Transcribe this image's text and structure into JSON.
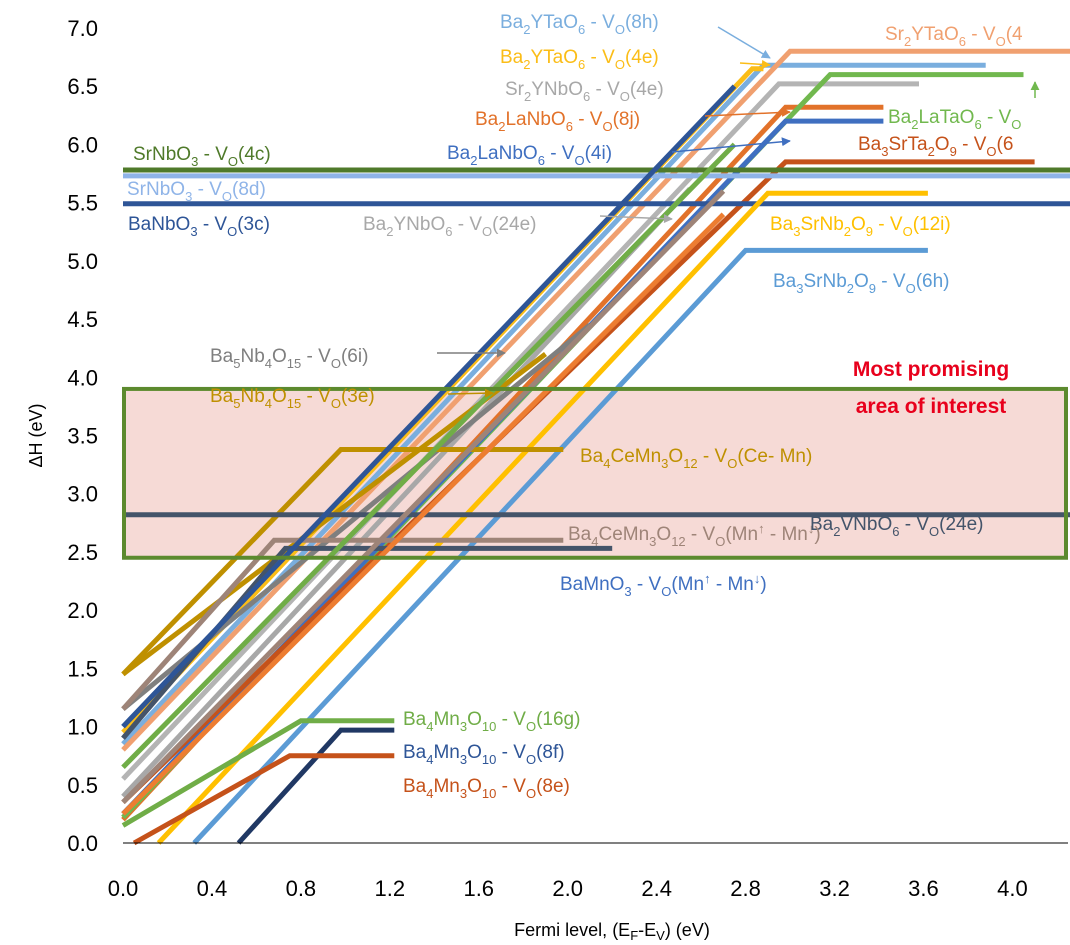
{
  "chart_data": {
    "type": "line",
    "xlabel": "Fermi level, (E_F-E_V) (eV)",
    "ylabel": "ΔH (eV)",
    "xlim": [
      0,
      4.25
    ],
    "ylim": [
      0,
      7
    ],
    "x_ticks": [
      "0.0",
      "0.4",
      "0.8",
      "1.2",
      "1.6",
      "2.0",
      "2.4",
      "2.8",
      "3.2",
      "3.6",
      "4.0"
    ],
    "y_ticks": [
      "0.0",
      "0.5",
      "1.0",
      "1.5",
      "2.0",
      "2.5",
      "3.0",
      "3.5",
      "4.0",
      "4.5",
      "5.0",
      "5.5",
      "6.0",
      "6.5",
      "7.0"
    ],
    "grid": false,
    "legend": "none",
    "region": {
      "label": [
        "Most promising",
        "area of interest"
      ],
      "y_range": [
        2.45,
        3.9
      ],
      "fill": "#f6dad6",
      "border": "#5c8a2e"
    },
    "series": [
      {
        "name": "Ba2YTaO6 - VO(8h)",
        "color": "#7aaede",
        "x": [
          0.0,
          2.88,
          3.88
        ],
        "y": [
          0.85,
          6.68,
          6.68
        ]
      },
      {
        "name": "Sr2YTaO6 - VO(4",
        "color": "#f0a070",
        "x": [
          0.0,
          3.0,
          4.3
        ],
        "y": [
          0.8,
          6.8,
          6.8
        ]
      },
      {
        "name": "Ba2YTaO6 - VO(4e)",
        "color": "#fbbd17",
        "x": [
          0.0,
          2.83,
          2.88
        ],
        "y": [
          0.95,
          6.65,
          6.65
        ]
      },
      {
        "name": "Sr2YNbO6 - VO(4e)",
        "color": "#b4b4b4",
        "x": [
          0.0,
          2.95,
          3.58
        ],
        "y": [
          0.55,
          6.52,
          6.52
        ]
      },
      {
        "name": "Ba2LaNbO6 - VO(8j)",
        "color": "#e2722a",
        "x": [
          0.0,
          2.98,
          3.42
        ],
        "y": [
          0.2,
          6.32,
          6.32
        ]
      },
      {
        "name": "Ba2LaTaO6 - VO",
        "color": "#71b84e",
        "x": [
          0.0,
          3.18,
          4.05
        ],
        "y": [
          0.22,
          6.6,
          6.6
        ]
      },
      {
        "name": "Ba2LaNbO6 - VO(4i)",
        "color": "#3f6fc0",
        "x": [
          0.0,
          2.98,
          3.42
        ],
        "y": [
          0.25,
          6.2,
          6.2
        ]
      },
      {
        "name": "Ba3SrTa2O9 - VO(6",
        "color": "#c5521a",
        "x": [
          0.0,
          2.98,
          4.1
        ],
        "y": [
          0.35,
          5.85,
          5.85
        ]
      },
      {
        "name": "SrNbO3 - VO(4c)",
        "color": "#4f7a2a",
        "x": [
          0.0,
          4.3
        ],
        "y": [
          5.78,
          5.78
        ]
      },
      {
        "name": "SrNbO3 - VO(8d)",
        "color": "#8fb4e8",
        "x": [
          0.0,
          4.3
        ],
        "y": [
          5.73,
          5.73
        ]
      },
      {
        "name": "BaNbO3 - VO(3c)",
        "color": "#2e5597",
        "x": [
          0.0,
          4.3
        ],
        "y": [
          5.49,
          5.49
        ]
      },
      {
        "name": "Ba2YNbO6 - VO(24e)",
        "color": "#a8a8a8",
        "x": [
          0.0,
          2.55
        ],
        "y": [
          0.4,
          5.62
        ]
      },
      {
        "name": "Ba3SrNb2O9 - VO(12i)",
        "color": "#ffc000",
        "x": [
          0.16,
          2.9,
          3.62
        ],
        "y": [
          0.0,
          5.58,
          5.58
        ]
      },
      {
        "name": "Ba3SrNb2O9 - VO(6h)",
        "color": "#5b9bd5",
        "x": [
          0.32,
          2.8,
          3.62
        ],
        "y": [
          0.0,
          5.09,
          5.09
        ]
      },
      {
        "name": "Ba5Nb4O15 - VO(6i)",
        "color": "#7f7f7f",
        "x": [
          0.0,
          2.1
        ],
        "y": [
          1.15,
          4.45
        ]
      },
      {
        "name": "Ba5Nb4O15 - VO(3e)",
        "color": "#bf9000",
        "x": [
          0.0,
          1.9
        ],
        "y": [
          1.45,
          4.2
        ]
      },
      {
        "name": "Ba4CeMn3O12 - VO(Ce- Mn)",
        "color": "#bf9000",
        "x": [
          0.0,
          0.98,
          1.98
        ],
        "y": [
          1.45,
          3.38,
          3.38
        ]
      },
      {
        "name": "Ba2VNbO6 - VO(24e)",
        "color": "#44546a",
        "x": [
          0.0,
          4.3
        ],
        "y": [
          2.82,
          2.82
        ]
      },
      {
        "name": "Ba4CeMn3O12 - VO(Mn↑ - Mn↓)",
        "color": "#9e8478",
        "x": [
          0.0,
          0.68,
          1.98
        ],
        "y": [
          1.15,
          2.6,
          2.6
        ]
      },
      {
        "name": "BaMnO3 - VO(Mn↑ - Mn↓)",
        "color": "#44546a",
        "x": [
          0.0,
          0.73,
          2.2
        ],
        "y": [
          0.9,
          2.53,
          2.53
        ]
      },
      {
        "name": "Ba4Mn3O10 - VO(16g)",
        "color": "#70ad47",
        "x": [
          0.0,
          0.8,
          1.22
        ],
        "y": [
          0.15,
          1.05,
          1.05
        ]
      },
      {
        "name": "Ba4Mn3O10 - VO(8f)",
        "color": "#203864",
        "x": [
          0.52,
          0.98,
          1.22
        ],
        "y": [
          0.0,
          0.97,
          0.97
        ]
      },
      {
        "name": "Ba4Mn3O10 - VO(8e)",
        "color": "#c5521a",
        "x": [
          0.05,
          0.75,
          1.22
        ],
        "y": [
          0.0,
          0.75,
          0.75
        ]
      },
      {
        "name": "",
        "color": "#2e5597",
        "x": [
          0.0,
          2.75
        ],
        "y": [
          1.0,
          6.5
        ]
      },
      {
        "name": "",
        "color": "#70ad47",
        "x": [
          0.0,
          2.75
        ],
        "y": [
          0.65,
          6.0
        ]
      },
      {
        "name": "",
        "color": "#ed7d31",
        "x": [
          0.0,
          2.7
        ],
        "y": [
          0.25,
          5.4
        ]
      },
      {
        "name": "",
        "color": "#9e8478",
        "x": [
          0.0,
          2.7
        ],
        "y": [
          0.35,
          5.6
        ]
      }
    ],
    "labels": [
      {
        "segs": [
          [
            "Ba",
            ""
          ],
          [
            "2",
            "sub"
          ],
          [
            "YTaO",
            ""
          ],
          [
            "6",
            "sub"
          ],
          [
            " - V",
            ""
          ],
          [
            "O",
            "sub"
          ],
          [
            "(8h)",
            ""
          ]
        ],
        "color": "#7aaede"
      },
      {
        "segs": [
          [
            "Sr",
            ""
          ],
          [
            "2",
            "sub"
          ],
          [
            "YTaO",
            ""
          ],
          [
            "6",
            "sub"
          ],
          [
            " - V",
            ""
          ],
          [
            "O",
            "sub"
          ],
          [
            "(4",
            ""
          ]
        ],
        "color": "#f0a070"
      },
      {
        "segs": [
          [
            "Ba",
            ""
          ],
          [
            "2",
            "sub"
          ],
          [
            "YTaO",
            ""
          ],
          [
            "6",
            "sub"
          ],
          [
            " - V",
            ""
          ],
          [
            "O",
            "sub"
          ],
          [
            "(4e)",
            ""
          ]
        ],
        "color": "#fbbd17"
      },
      {
        "segs": [
          [
            "Sr",
            ""
          ],
          [
            "2",
            "sub"
          ],
          [
            "YNbO",
            ""
          ],
          [
            "6",
            "sub"
          ],
          [
            " - V",
            ""
          ],
          [
            "O",
            "sub"
          ],
          [
            "(4e)",
            ""
          ]
        ],
        "color": "#a8a8a8"
      },
      {
        "segs": [
          [
            "Ba",
            ""
          ],
          [
            "2",
            "sub"
          ],
          [
            "LaNbO",
            ""
          ],
          [
            "6",
            "sub"
          ],
          [
            " - V",
            ""
          ],
          [
            "O",
            "sub"
          ],
          [
            "(8j)",
            ""
          ]
        ],
        "color": "#e2722a"
      },
      {
        "segs": [
          [
            "Ba",
            ""
          ],
          [
            "2",
            "sub"
          ],
          [
            "LaTaO",
            ""
          ],
          [
            "6",
            "sub"
          ],
          [
            " - V",
            ""
          ],
          [
            "O",
            "sub"
          ]
        ],
        "color": "#71b84e"
      },
      {
        "segs": [
          [
            "SrNbO",
            ""
          ],
          [
            "3",
            "sub"
          ],
          [
            " - V",
            ""
          ],
          [
            "O",
            "sub"
          ],
          [
            "(4c)",
            ""
          ]
        ],
        "color": "#4f7a2a"
      },
      {
        "segs": [
          [
            "Ba",
            ""
          ],
          [
            "2",
            "sub"
          ],
          [
            "LaNbO",
            ""
          ],
          [
            "6",
            "sub"
          ],
          [
            " - V",
            ""
          ],
          [
            "O",
            "sub"
          ],
          [
            "(4i)",
            ""
          ]
        ],
        "color": "#3f6fc0"
      },
      {
        "segs": [
          [
            "Ba",
            ""
          ],
          [
            "3",
            "sub"
          ],
          [
            "SrTa",
            ""
          ],
          [
            "2",
            "sub"
          ],
          [
            "O",
            ""
          ],
          [
            "9",
            "sub"
          ],
          [
            " - V",
            ""
          ],
          [
            "O",
            "sub"
          ],
          [
            "(6",
            ""
          ]
        ],
        "color": "#c5521a"
      },
      {
        "segs": [
          [
            "SrNbO",
            ""
          ],
          [
            "3",
            "sub"
          ],
          [
            " - V",
            ""
          ],
          [
            "O",
            "sub"
          ],
          [
            "(8d)",
            ""
          ]
        ],
        "color": "#8fb4e8"
      },
      {
        "segs": [
          [
            "BaNbO",
            ""
          ],
          [
            "3",
            "sub"
          ],
          [
            " - V",
            ""
          ],
          [
            "O",
            "sub"
          ],
          [
            "(3c)",
            ""
          ]
        ],
        "color": "#2e5597"
      },
      {
        "segs": [
          [
            "Ba",
            ""
          ],
          [
            "2",
            "sub"
          ],
          [
            "YNbO",
            ""
          ],
          [
            "6",
            "sub"
          ],
          [
            " - V",
            ""
          ],
          [
            "O",
            "sub"
          ],
          [
            "(24e)",
            ""
          ]
        ],
        "color": "#a8a8a8"
      },
      {
        "segs": [
          [
            "Ba",
            ""
          ],
          [
            "3",
            "sub"
          ],
          [
            "SrNb",
            ""
          ],
          [
            "2",
            "sub"
          ],
          [
            "O",
            ""
          ],
          [
            "9",
            "sub"
          ],
          [
            " - V",
            ""
          ],
          [
            "O",
            "sub"
          ],
          [
            "(12i)",
            ""
          ]
        ],
        "color": "#ffc000"
      },
      {
        "segs": [
          [
            "Ba",
            ""
          ],
          [
            "3",
            "sub"
          ],
          [
            "SrNb",
            ""
          ],
          [
            "2",
            "sub"
          ],
          [
            "O",
            ""
          ],
          [
            "9",
            "sub"
          ],
          [
            " - V",
            ""
          ],
          [
            "O",
            "sub"
          ],
          [
            "(6h)",
            ""
          ]
        ],
        "color": "#5b9bd5"
      },
      {
        "segs": [
          [
            "Ba",
            ""
          ],
          [
            "5",
            "sub"
          ],
          [
            "Nb",
            ""
          ],
          [
            "4",
            "sub"
          ],
          [
            "O",
            ""
          ],
          [
            "15",
            "sub"
          ],
          [
            " - V",
            ""
          ],
          [
            "O",
            "sub"
          ],
          [
            "(6i)",
            ""
          ]
        ],
        "color": "#7f7f7f"
      },
      {
        "segs": [
          [
            "Ba",
            ""
          ],
          [
            "5",
            "sub"
          ],
          [
            "Nb",
            ""
          ],
          [
            "4",
            "sub"
          ],
          [
            "O",
            ""
          ],
          [
            "15",
            "sub"
          ],
          [
            " - V",
            ""
          ],
          [
            "O",
            "sub"
          ],
          [
            "(3e)",
            ""
          ]
        ],
        "color": "#bf9000"
      },
      {
        "segs": [
          [
            "Ba",
            ""
          ],
          [
            "4",
            "sub"
          ],
          [
            "CeMn",
            ""
          ],
          [
            "3",
            "sub"
          ],
          [
            "O",
            ""
          ],
          [
            "12",
            "sub"
          ],
          [
            " - V",
            ""
          ],
          [
            "O",
            "sub"
          ],
          [
            "(Ce- Mn)",
            ""
          ]
        ],
        "color": "#bf9000"
      },
      {
        "segs": [
          [
            "Ba",
            ""
          ],
          [
            "2",
            "sub"
          ],
          [
            "VNbO",
            ""
          ],
          [
            "6",
            "sub"
          ],
          [
            " - V",
            ""
          ],
          [
            "O",
            "sub"
          ],
          [
            "(24e)",
            ""
          ]
        ],
        "color": "#44546a"
      },
      {
        "segs": [
          [
            "Ba",
            ""
          ],
          [
            "4",
            "sub"
          ],
          [
            "CeMn",
            ""
          ],
          [
            "3",
            "sub"
          ],
          [
            "O",
            ""
          ],
          [
            "12",
            "sub"
          ],
          [
            " - V",
            ""
          ],
          [
            "O",
            "sub"
          ],
          [
            "(Mn",
            ""
          ],
          [
            "↑",
            "sup"
          ],
          [
            " - Mn",
            ""
          ],
          [
            "↓",
            "sup"
          ],
          [
            ")",
            ""
          ]
        ],
        "color": "#9e8478"
      },
      {
        "segs": [
          [
            "BaMnO",
            ""
          ],
          [
            "3",
            "sub"
          ],
          [
            " - V",
            ""
          ],
          [
            "O",
            "sub"
          ],
          [
            "(Mn",
            ""
          ],
          [
            "↑",
            "sup"
          ],
          [
            " - Mn",
            ""
          ],
          [
            "↓",
            "sup"
          ],
          [
            ")",
            ""
          ]
        ],
        "color": "#3f6fc0"
      },
      {
        "segs": [
          [
            "Ba",
            ""
          ],
          [
            "4",
            "sub"
          ],
          [
            "Mn",
            ""
          ],
          [
            "3",
            "sub"
          ],
          [
            "O",
            ""
          ],
          [
            "10",
            "sub"
          ],
          [
            " - V",
            ""
          ],
          [
            "O",
            "sub"
          ],
          [
            "(16g)",
            ""
          ]
        ],
        "color": "#70ad47"
      },
      {
        "segs": [
          [
            "Ba",
            ""
          ],
          [
            "4",
            "sub"
          ],
          [
            "Mn",
            ""
          ],
          [
            "3",
            "sub"
          ],
          [
            "O",
            ""
          ],
          [
            "10",
            "sub"
          ],
          [
            " - V",
            ""
          ],
          [
            "O",
            "sub"
          ],
          [
            "(8f)",
            ""
          ]
        ],
        "color": "#2e5597"
      },
      {
        "segs": [
          [
            "Ba",
            ""
          ],
          [
            "4",
            "sub"
          ],
          [
            "Mn",
            ""
          ],
          [
            "3",
            "sub"
          ],
          [
            "O",
            ""
          ],
          [
            "10",
            "sub"
          ],
          [
            " - V",
            ""
          ],
          [
            "O",
            "sub"
          ],
          [
            "(8e)",
            ""
          ]
        ],
        "color": "#c5521a"
      }
    ]
  }
}
